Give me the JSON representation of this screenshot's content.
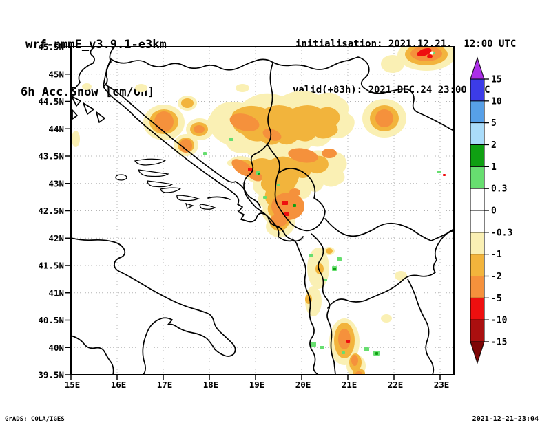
{
  "header": {
    "model": "wrf-nmmE_v3.9.1-e3km",
    "field": "6h Acc.Snow [cm/6h]",
    "init_line": "initialisation: 2021.12.21.  12:00 UTC",
    "valid_line": "valid(+83h): 2021.DEC.24 23:00 UTC"
  },
  "footer": {
    "left": "GrADS: COLA/IGES",
    "right": "2021-12-21-23:04"
  },
  "palette": {
    "ink": "#000000",
    "grid": "#b4b4b4",
    "white": "#ffffff",
    "purple": "#ab2fe8",
    "blue": "#3c3ce8",
    "midBlue": "#57a0e8",
    "lightBlue": "#aadcfa",
    "darkGreen": "#0fa012",
    "lightGreen": "#67de70",
    "paleYellow": "#faf0b4",
    "gold": "#f2b43c",
    "orange": "#f5913c",
    "red": "#ee0f0f",
    "darkRed": "#aa0f0f",
    "darkestRed": "#7e0606"
  },
  "chart_data": {
    "type": "heatmap",
    "title": "6h Acc.Snow [cm/6h]",
    "model": "wrf-nmmE_v3.9.1-e3km",
    "units": "cm / 6h",
    "projection": "lat-lon map, Balkans / Adriatic",
    "lon_range": [
      15,
      23.3
    ],
    "lat_range": [
      39.5,
      45.5
    ],
    "grid": "dotted gray at 1 deg lon / 0.5 deg lat",
    "lon_ticks": [
      {
        "value": 15,
        "label": "15E"
      },
      {
        "value": 16,
        "label": "16E"
      },
      {
        "value": 17,
        "label": "17E"
      },
      {
        "value": 18,
        "label": "18E"
      },
      {
        "value": 19,
        "label": "19E"
      },
      {
        "value": 20,
        "label": "20E"
      },
      {
        "value": 21,
        "label": "21E"
      },
      {
        "value": 22,
        "label": "22E"
      },
      {
        "value": 23,
        "label": "23E"
      }
    ],
    "lat_ticks": [
      {
        "value": 45.5,
        "label": "45.5N"
      },
      {
        "value": 45,
        "label": "45N"
      },
      {
        "value": 44.5,
        "label": "44.5N"
      },
      {
        "value": 44,
        "label": "44N"
      },
      {
        "value": 43.5,
        "label": "43.5N"
      },
      {
        "value": 43,
        "label": "43N"
      },
      {
        "value": 42.5,
        "label": "42.5N"
      },
      {
        "value": 42,
        "label": "42N"
      },
      {
        "value": 41.5,
        "label": "41.5N"
      },
      {
        "value": 41,
        "label": "41N"
      },
      {
        "value": 40.5,
        "label": "40.5N"
      },
      {
        "value": 40,
        "label": "40N"
      },
      {
        "value": 39.5,
        "label": "39.5N"
      }
    ],
    "colorbar": {
      "position": "right",
      "labels": [
        "15",
        "10",
        "5",
        "2",
        "1",
        "0.3",
        "0",
        "-0.3",
        "-1",
        "-2",
        "-5",
        "-10",
        "-15"
      ],
      "segment_colors_top_to_bottom": [
        "#3c3ce8",
        "#57a0e8",
        "#aadcfa",
        "#0fa012",
        "#67de70",
        "#ffffff",
        "#ffffff",
        "#faf0b4",
        "#f2b43c",
        "#f5913c",
        "#ee0f0f",
        "#aa0f0f"
      ],
      "over_color": "#ab2fe8",
      "under_color": "#7e0606"
    },
    "depicted": {
      "summary": "Mostly negative 6h snow change (pale yellow -0.3..-1, gold -1..-2, orange -2..-5, red -5..-10, dark red -10..-15 cm) over the Dinaric Alps and southern Balkans; small scattered positive green specks (+0.3..+2 cm).",
      "regions": [
        {
          "area": "Bosnia / Dinaric belt 17-19.5E, 43.3-44.3N",
          "value_cm": "-1 to -5 (several orange cores)"
        },
        {
          "area": "Montenegro-Kosovo mountains 19-20.5E, 42.4-43.4N",
          "value_cm": "-2 to -5 with small -5 to -10 red spots"
        },
        {
          "area": "NE corner blob near 22.7E, 45.4N",
          "value_cm": "-2 to -10 with red core"
        },
        {
          "area": "East Serbia blob near 21.8E, 44.2N",
          "value_cm": "-2 to -5"
        },
        {
          "area": "Macedonia ridge near 21.2E, 39.5-41N",
          "value_cm": "-1 to -5"
        },
        {
          "area": "Albania / Macedonia scattered specks",
          "value_cm": "+0.3 to +2 (green)"
        }
      ]
    }
  }
}
